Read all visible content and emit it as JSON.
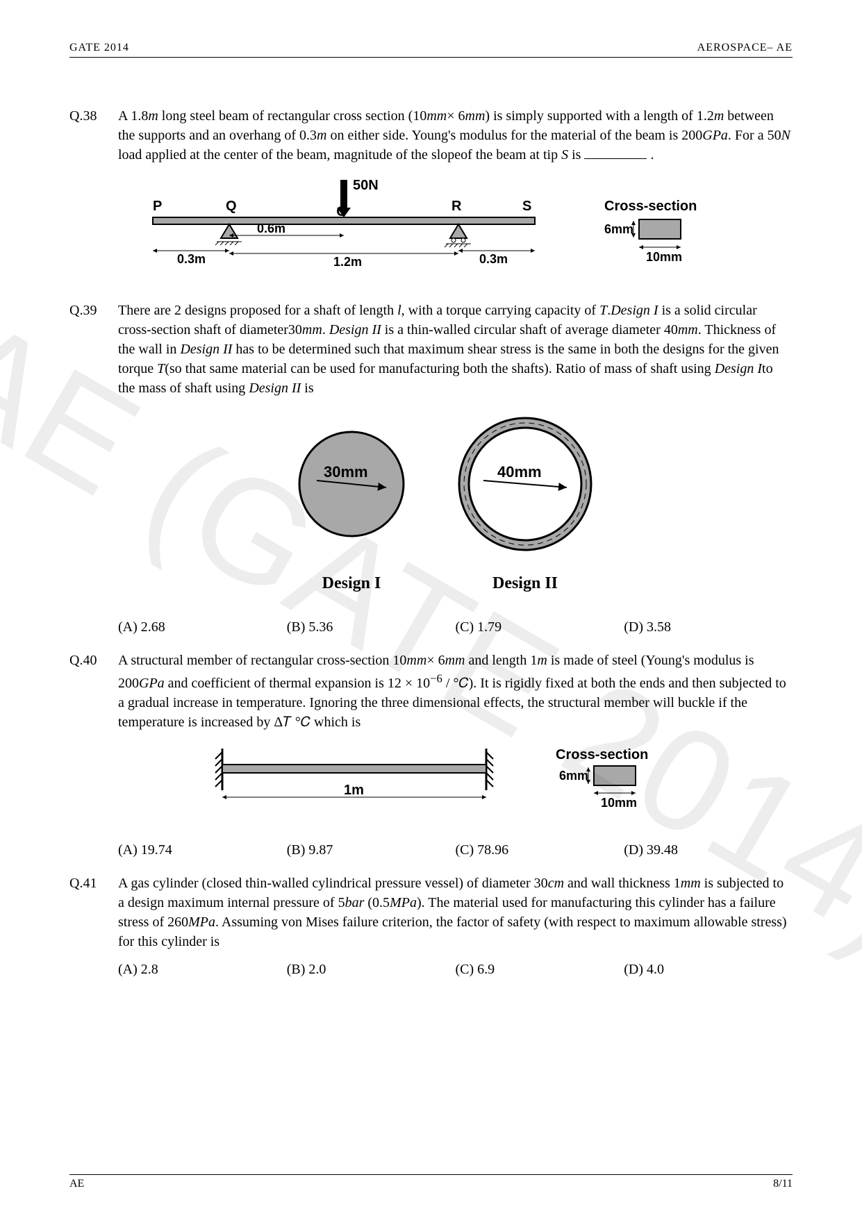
{
  "header": {
    "left": "GATE 2014",
    "right": "AEROSPACE– AE"
  },
  "footer": {
    "left": "AE",
    "right": "8/11"
  },
  "watermark": "AE (GATE 2014)",
  "q38": {
    "num": "Q.38",
    "text": "A 1.8<em>m</em> long steel beam of rectangular cross section (10<em>mm</em>× 6<em>mm</em>) is simply supported with a length of 1.2<em>m</em> between the supports and an overhang of 0.3<em>m</em> on either side. Young's modulus for the material of the beam is 200<em>GPa</em>. For a 50<em>N</em> load applied at the center of the beam, magnitude of the slopeof the beam at tip <em>S</em> is ",
    "diagram": {
      "load": "50N",
      "points": [
        "P",
        "Q",
        "O",
        "R",
        "S"
      ],
      "dims": {
        "left": "0.3m",
        "halfspan": "0.6m",
        "span": "1.2m",
        "right": "0.3m"
      },
      "cs_title": "Cross-section",
      "cs_h": "6mm",
      "cs_w": "10mm"
    }
  },
  "q39": {
    "num": "Q.39",
    "text": "There are 2 designs proposed for a shaft of length <em>l</em>, with a torque carrying capacity of <em>T</em>.<em>Design I</em> is a solid circular cross-section shaft of diameter30<em>mm</em>. <em>Design II</em> is a thin-walled circular shaft of average diameter 40<em>mm</em>. Thickness of the wall in <em>Design II</em> has to be determined such that maximum shear stress is the same in both the designs for the given torque <em>T</em>(so that same material can be used for manufacturing both the shafts). Ratio of mass of shaft using <em>Design I</em>to the mass of shaft using <em>Design II</em> is",
    "diagram": {
      "d1": "30mm",
      "d2": "40mm",
      "label1": "Design I",
      "label2": "Design II"
    },
    "options": {
      "A": "(A) 2.68",
      "B": "(B) 5.36",
      "C": "(C) 1.79",
      "D": "(D) 3.58"
    }
  },
  "q40": {
    "num": "Q.40",
    "text": "A structural member of rectangular cross-section 10<em>mm</em>× 6<em>mm</em> and length 1<em>m</em> is made of steel (Young's modulus is 200<em>GPa</em> and coefficient of thermal expansion is 12 × 10<sup>−6</sup> / °𝐶). It is rigidly fixed at both the ends and then subjected to a gradual increase in temperature. Ignoring the three dimensional effects, the structural member will buckle if the temperature is increased by Δ𝑇 °𝐶 which is",
    "diagram": {
      "len": "1m",
      "cs_title": "Cross-section",
      "cs_h": "6mm",
      "cs_w": "10mm"
    },
    "options": {
      "A": "(A) 19.74",
      "B": "(B) 9.87",
      "C": "(C) 78.96",
      "D": "(D) 39.48"
    }
  },
  "q41": {
    "num": "Q.41",
    "text": "A gas cylinder (closed thin-walled cylindrical pressure vessel) of diameter 30<em>cm</em> and wall thickness 1<em>mm</em> is subjected to a design maximum internal pressure of 5<em>bar</em> (0.5<em>MPa</em>). The material used for manufacturing this cylinder has a failure stress of 260<em>MPa</em>. Assuming von Mises failure criterion, the factor of safety (with respect to maximum allowable stress) for this cylinder is",
    "options": {
      "A": "(A) 2.8",
      "B": "(B) 2.0",
      "C": "(C) 6.9",
      "D": "(D) 4.0"
    }
  }
}
